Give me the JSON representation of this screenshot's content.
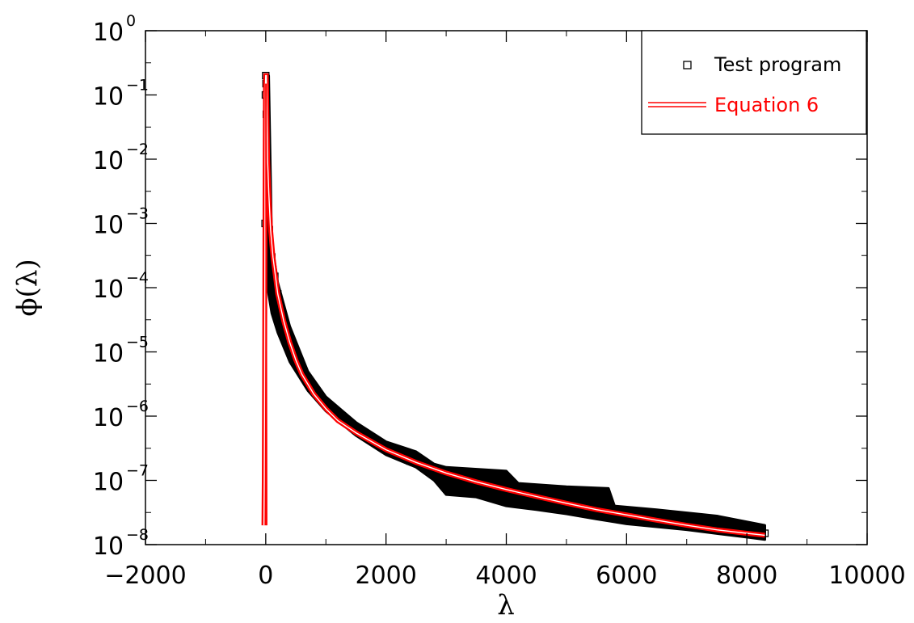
{
  "chart_data": {
    "type": "scatter",
    "xlabel": "λ",
    "ylabel": "ϕ(λ)",
    "xlim": [
      -2000,
      10000
    ],
    "ylim": [
      1e-08,
      1
    ],
    "yscale": "log",
    "grid": false,
    "legend_position": "top-right",
    "x_ticks": [
      "−2000",
      "0",
      "2000",
      "4000",
      "6000",
      "8000",
      "10000"
    ],
    "x_tick_values": [
      -2000,
      0,
      2000,
      4000,
      6000,
      8000,
      10000
    ],
    "y_tick_exponents": [
      "-8",
      "-7",
      "-6",
      "-5",
      "-4",
      "-3",
      "-2",
      "-1",
      "0"
    ],
    "y_tick_base": "10",
    "colors": {
      "test_program": "#000000",
      "equation": "#ff0000"
    },
    "series": [
      {
        "name": "Test program",
        "marker": "square",
        "points": [
          [
            0,
            0.2
          ],
          [
            5,
            0.15
          ],
          [
            -5,
            0.1
          ],
          [
            10,
            0.05
          ],
          [
            20,
            0.01
          ],
          [
            -10,
            0.001
          ],
          [
            40,
            0.002
          ],
          [
            60,
            0.0008
          ],
          [
            100,
            0.0003
          ],
          [
            150,
            0.00015
          ],
          [
            200,
            8e-05
          ],
          [
            300,
            3e-05
          ],
          [
            400,
            1.5e-05
          ],
          [
            500,
            8e-06
          ],
          [
            600,
            5e-06
          ],
          [
            800,
            2.5e-06
          ],
          [
            1000,
            1.5e-06
          ],
          [
            1200,
            1e-06
          ],
          [
            1500,
            6e-07
          ],
          [
            1800,
            4e-07
          ],
          [
            2000,
            3e-07
          ],
          [
            2400,
            2e-07
          ],
          [
            2800,
            1.5e-07
          ],
          [
            3000,
            1.3e-07
          ],
          [
            3200,
            1.2e-07
          ],
          [
            3600,
            1.1e-07
          ],
          [
            4000,
            6e-08
          ],
          [
            4400,
            6e-08
          ],
          [
            4800,
            7e-08
          ],
          [
            5200,
            5e-08
          ],
          [
            5600,
            6e-08
          ],
          [
            6000,
            3e-08
          ],
          [
            6400,
            3e-08
          ],
          [
            6800,
            2.8e-08
          ],
          [
            7200,
            2.2e-08
          ],
          [
            7600,
            2e-08
          ],
          [
            8000,
            1.7e-08
          ],
          [
            8300,
            1.5e-08
          ]
        ],
        "band_upper": [
          [
            50,
            0.2
          ],
          [
            100,
            0.0005
          ],
          [
            200,
            0.00012
          ],
          [
            400,
            2.5e-05
          ],
          [
            700,
            5e-06
          ],
          [
            1000,
            2e-06
          ],
          [
            1500,
            8e-07
          ],
          [
            2000,
            4e-07
          ],
          [
            2500,
            2.8e-07
          ],
          [
            2800,
            1.8e-07
          ],
          [
            3000,
            1.6e-07
          ],
          [
            4000,
            1.4e-07
          ],
          [
            4200,
            9e-08
          ],
          [
            5000,
            8e-08
          ],
          [
            5700,
            7.5e-08
          ],
          [
            5800,
            4e-08
          ],
          [
            6500,
            3.5e-08
          ],
          [
            7500,
            2.8e-08
          ],
          [
            8300,
            2e-08
          ]
        ],
        "band_lower": [
          [
            -20,
            0.001
          ],
          [
            30,
            0.0001
          ],
          [
            100,
            4e-05
          ],
          [
            200,
            2e-05
          ],
          [
            400,
            7e-06
          ],
          [
            700,
            2.5e-06
          ],
          [
            1000,
            1.2e-06
          ],
          [
            1500,
            5e-07
          ],
          [
            2000,
            2.5e-07
          ],
          [
            2500,
            1.6e-07
          ],
          [
            2800,
            1e-07
          ],
          [
            3000,
            6e-08
          ],
          [
            3500,
            5.5e-08
          ],
          [
            4000,
            4e-08
          ],
          [
            4500,
            3.5e-08
          ],
          [
            5000,
            3e-08
          ],
          [
            5500,
            2.5e-08
          ],
          [
            6000,
            2.1e-08
          ],
          [
            7000,
            1.7e-08
          ],
          [
            8000,
            1.3e-08
          ],
          [
            8300,
            1.2e-08
          ]
        ]
      },
      {
        "name": "Equation 6",
        "style": "double-line",
        "points": [
          [
            -30,
            2e-08
          ],
          [
            -25,
            1e-07
          ],
          [
            -20,
            1e-06
          ],
          [
            -15,
            0.0001
          ],
          [
            -10,
            0.01
          ],
          [
            -5,
            0.15
          ],
          [
            0,
            0.2
          ],
          [
            10,
            0.2
          ],
          [
            20,
            0.05
          ],
          [
            30,
            0.01
          ],
          [
            50,
            0.003
          ],
          [
            80,
            0.0008
          ],
          [
            120,
            0.0003
          ],
          [
            200,
            8e-05
          ],
          [
            300,
            3e-05
          ],
          [
            400,
            1.4e-05
          ],
          [
            500,
            7.5e-06
          ],
          [
            600,
            4.5e-06
          ],
          [
            800,
            2.2e-06
          ],
          [
            1000,
            1.3e-06
          ],
          [
            1200,
            8.5e-07
          ],
          [
            1500,
            5.5e-07
          ],
          [
            2000,
            3e-07
          ],
          [
            2500,
            1.9e-07
          ],
          [
            3000,
            1.3e-07
          ],
          [
            3500,
            9.5e-08
          ],
          [
            4000,
            7.2e-08
          ],
          [
            4500,
            5.6e-08
          ],
          [
            5000,
            4.4e-08
          ],
          [
            5500,
            3.5e-08
          ],
          [
            6000,
            2.9e-08
          ],
          [
            6500,
            2.4e-08
          ],
          [
            7000,
            2e-08
          ],
          [
            7500,
            1.7e-08
          ],
          [
            8000,
            1.5e-08
          ],
          [
            8300,
            1.4e-08
          ]
        ],
        "spike_right": [
          [
            15,
            2e-08
          ],
          [
            12,
            1e-06
          ],
          [
            8,
            0.0001
          ],
          [
            5,
            0.01
          ],
          [
            3,
            0.15
          ]
        ]
      }
    ]
  }
}
